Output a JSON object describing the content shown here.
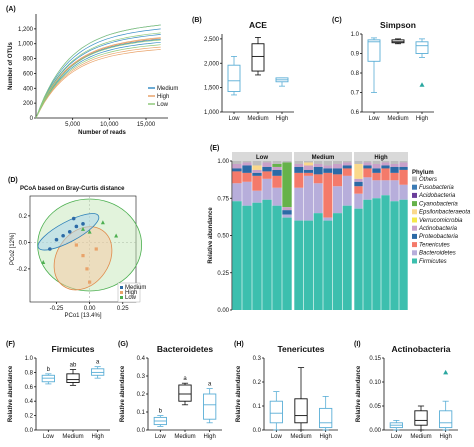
{
  "chart_data": [
    {
      "panel": "(A)",
      "type": "line",
      "title": "",
      "xlabel": "Number of reads",
      "ylabel": "Number of OTUs",
      "xlim": [
        0,
        18000
      ],
      "ylim": [
        0,
        1400
      ],
      "xticks": [
        "5,000",
        "10,000",
        "15,000"
      ],
      "yticks": [
        "0",
        "200",
        "400",
        "600",
        "800",
        "1,000",
        "1,200"
      ],
      "legend": {
        "position": "right",
        "entries": [
          "Medium",
          "High",
          "Low"
        ]
      },
      "colors": {
        "Medium": "#3a8fc6",
        "High": "#e9a36a",
        "Low": "#8fc97a"
      },
      "series": [
        {
          "name": "Medium",
          "plateau": [
            1180,
            1130,
            1000,
            960,
            1060
          ]
        },
        {
          "name": "High",
          "plateau": [
            1020,
            900,
            870,
            1010
          ]
        },
        {
          "name": "Low",
          "plateau": [
            1180,
            990,
            1080,
            930
          ]
        }
      ]
    },
    {
      "panel": "(B)",
      "type": "box",
      "title": "ACE",
      "categories": [
        "Low",
        "Medium",
        "High"
      ],
      "ylim": [
        1000,
        2600
      ],
      "yticks": [
        "1,000",
        "1,500",
        "2,000",
        "2,500"
      ],
      "boxes": [
        {
          "min": 1350,
          "q1": 1420,
          "median": 1640,
          "q3": 1960,
          "max": 2140
        },
        {
          "min": 1760,
          "q1": 1840,
          "median": 2140,
          "q3": 2400,
          "max": 2530
        },
        {
          "min": 1530,
          "q1": 1620,
          "median": 1660,
          "q3": 1700,
          "max": 1700
        }
      ]
    },
    {
      "panel": "(C)",
      "type": "box",
      "title": "Simpson",
      "categories": [
        "Low",
        "Medium",
        "High"
      ],
      "ylim": [
        0.6,
        1.0
      ],
      "yticks": [
        "0.6",
        "0.7",
        "0.8",
        "0.9",
        "1.0"
      ],
      "boxes": [
        {
          "min": 0.7,
          "q1": 0.86,
          "median": 0.96,
          "q3": 0.97,
          "max": 0.98
        },
        {
          "min": 0.95,
          "q1": 0.955,
          "median": 0.96,
          "q3": 0.97,
          "max": 0.975
        },
        {
          "min": 0.88,
          "q1": 0.9,
          "median": 0.94,
          "q3": 0.96,
          "max": 0.975
        }
      ],
      "outliers": [
        {
          "group": "High",
          "value": 0.74
        }
      ]
    },
    {
      "panel": "(D)",
      "type": "scatter",
      "title": "PCoA based on Bray-Curtis distance",
      "xlabel": "PCo1 [13.4%]",
      "ylabel": "PCo2 [12%]",
      "xlim": [
        -0.45,
        0.35
      ],
      "ylim": [
        -0.45,
        0.35
      ],
      "xticks": [
        "-0.25",
        "0.00",
        "0.25"
      ],
      "yticks": [
        "-0.2",
        "0.0",
        "0.2"
      ],
      "legend": {
        "position": "bottom-right",
        "entries": [
          "Medium",
          "High",
          "Low"
        ]
      },
      "series": [
        {
          "name": "Medium",
          "points": [
            [
              -0.25,
              0.02
            ],
            [
              -0.2,
              0.05
            ],
            [
              -0.15,
              0.08
            ],
            [
              -0.1,
              0.12
            ],
            [
              -0.05,
              0.14
            ],
            [
              -0.3,
              -0.05
            ],
            [
              -0.12,
              0.18
            ]
          ]
        },
        {
          "name": "High",
          "points": [
            [
              -0.05,
              -0.1
            ],
            [
              -0.02,
              -0.2
            ],
            [
              0.05,
              -0.05
            ],
            [
              -0.1,
              -0.02
            ],
            [
              0.0,
              -0.3
            ]
          ]
        },
        {
          "name": "Low",
          "points": [
            [
              -0.35,
              -0.15
            ],
            [
              0.1,
              0.15
            ],
            [
              -0.05,
              0.1
            ],
            [
              0.2,
              0.05
            ],
            [
              0.0,
              0.08
            ]
          ]
        }
      ]
    },
    {
      "panel": "(E)",
      "type": "bar",
      "title": "",
      "ylabel": "Relative abundance",
      "groups": [
        "Low",
        "Medium",
        "High"
      ],
      "yticks": [
        "0.00",
        "0.25",
        "0.50",
        "0.75",
        "1.00"
      ],
      "legend_title": "Phylum",
      "phyla": [
        "Others",
        "Fusobacteria",
        "Acidobacteria",
        "Cyanobacteria",
        "Epsilonbacteraeota",
        "Verrucomicrobia",
        "Actinobacteria",
        "Proteobacteria",
        "Tenericutes",
        "Bacteroidetes",
        "Firmicutes"
      ],
      "phylum_colors": [
        "#bdbdbd",
        "#3b7bb5",
        "#6a3d9a",
        "#66b24a",
        "#fad98c",
        "#f5e948",
        "#c9a0c9",
        "#2c6aa6",
        "#f47a6a",
        "#b7aedb",
        "#3cbfae"
      ],
      "samples": [
        {
          "group": "Low",
          "values": [
            0.02,
            0.0,
            0.0,
            0.0,
            0.0,
            0.0,
            0.03,
            0.02,
            0.08,
            0.12,
            0.73
          ]
        },
        {
          "group": "Low",
          "values": [
            0.01,
            0.0,
            0.0,
            0.0,
            0.0,
            0.0,
            0.02,
            0.05,
            0.06,
            0.16,
            0.7
          ]
        },
        {
          "group": "Low",
          "values": [
            0.03,
            0.0,
            0.0,
            0.0,
            0.03,
            0.0,
            0.02,
            0.02,
            0.1,
            0.08,
            0.72
          ]
        },
        {
          "group": "Low",
          "values": [
            0.01,
            0.0,
            0.0,
            0.0,
            0.0,
            0.0,
            0.03,
            0.03,
            0.05,
            0.14,
            0.74
          ]
        },
        {
          "group": "Low",
          "values": [
            0.02,
            0.0,
            0.0,
            0.02,
            0.0,
            0.0,
            0.02,
            0.04,
            0.08,
            0.12,
            0.7
          ]
        },
        {
          "group": "Low",
          "values": [
            0.01,
            0.0,
            0.0,
            0.3,
            0.0,
            0.0,
            0.02,
            0.03,
            0.0,
            0.02,
            0.62
          ]
        },
        {
          "group": "Medium",
          "values": [
            0.02,
            0.0,
            0.0,
            0.0,
            0.0,
            0.0,
            0.02,
            0.04,
            0.1,
            0.22,
            0.6
          ]
        },
        {
          "group": "Medium",
          "values": [
            0.01,
            0.0,
            0.0,
            0.0,
            0.02,
            0.0,
            0.03,
            0.02,
            0.02,
            0.3,
            0.6
          ]
        },
        {
          "group": "Medium",
          "values": [
            0.02,
            0.0,
            0.0,
            0.0,
            0.0,
            0.0,
            0.02,
            0.05,
            0.06,
            0.2,
            0.65
          ]
        },
        {
          "group": "Medium",
          "values": [
            0.03,
            0.0,
            0.0,
            0.0,
            0.0,
            0.0,
            0.02,
            0.03,
            0.3,
            0.02,
            0.6
          ]
        },
        {
          "group": "Medium",
          "values": [
            0.02,
            0.0,
            0.0,
            0.0,
            0.0,
            0.0,
            0.03,
            0.04,
            0.08,
            0.18,
            0.65
          ]
        },
        {
          "group": "Medium",
          "values": [
            0.01,
            0.0,
            0.0,
            0.0,
            0.0,
            0.0,
            0.02,
            0.02,
            0.05,
            0.2,
            0.7
          ]
        },
        {
          "group": "High",
          "values": [
            0.02,
            0.0,
            0.0,
            0.0,
            0.1,
            0.0,
            0.02,
            0.03,
            0.05,
            0.1,
            0.68
          ]
        },
        {
          "group": "High",
          "values": [
            0.01,
            0.0,
            0.0,
            0.0,
            0.0,
            0.0,
            0.02,
            0.02,
            0.06,
            0.15,
            0.74
          ]
        },
        {
          "group": "High",
          "values": [
            0.02,
            0.0,
            0.0,
            0.0,
            0.0,
            0.0,
            0.03,
            0.03,
            0.05,
            0.12,
            0.75
          ]
        },
        {
          "group": "High",
          "values": [
            0.01,
            0.0,
            0.0,
            0.0,
            0.0,
            0.0,
            0.02,
            0.02,
            0.08,
            0.1,
            0.77
          ]
        },
        {
          "group": "High",
          "values": [
            0.02,
            0.0,
            0.0,
            0.0,
            0.0,
            0.0,
            0.02,
            0.04,
            0.05,
            0.14,
            0.73
          ]
        },
        {
          "group": "High",
          "values": [
            0.01,
            0.0,
            0.0,
            0.0,
            0.0,
            0.0,
            0.03,
            0.02,
            0.1,
            0.1,
            0.74
          ]
        }
      ]
    },
    {
      "panel": "(F)",
      "type": "box",
      "title": "Firmicutes",
      "ylabel": "Relative abundance",
      "categories": [
        "Low",
        "Medium",
        "High"
      ],
      "ylim": [
        0.0,
        1.0
      ],
      "yticks": [
        "0.0",
        "0.2",
        "0.4",
        "0.6",
        "0.8",
        "1.0"
      ],
      "significance": [
        "b",
        "ab",
        "a"
      ],
      "boxes": [
        {
          "min": 0.64,
          "q1": 0.67,
          "median": 0.72,
          "q3": 0.76,
          "max": 0.78
        },
        {
          "min": 0.62,
          "q1": 0.66,
          "median": 0.7,
          "q3": 0.78,
          "max": 0.84
        },
        {
          "min": 0.72,
          "q1": 0.76,
          "median": 0.8,
          "q3": 0.85,
          "max": 0.88
        }
      ]
    },
    {
      "panel": "(G)",
      "type": "box",
      "title": "Bacteroidetes",
      "ylabel": "Relative abundance",
      "categories": [
        "Low",
        "Medium",
        "High"
      ],
      "ylim": [
        0.0,
        0.4
      ],
      "yticks": [
        "0.0",
        "0.1",
        "0.2",
        "0.3",
        "0.4"
      ],
      "significance": [
        "b",
        "a",
        "a"
      ],
      "boxes": [
        {
          "min": 0.02,
          "q1": 0.03,
          "median": 0.05,
          "q3": 0.07,
          "max": 0.08
        },
        {
          "min": 0.14,
          "q1": 0.16,
          "median": 0.2,
          "q3": 0.25,
          "max": 0.26
        },
        {
          "min": 0.04,
          "q1": 0.06,
          "median": 0.14,
          "q3": 0.2,
          "max": 0.23
        }
      ]
    },
    {
      "panel": "(H)",
      "type": "box",
      "title": "Tenericutes",
      "ylabel": "Relative abundance",
      "categories": [
        "Low",
        "Medium",
        "High"
      ],
      "ylim": [
        0.0,
        0.3
      ],
      "yticks": [
        "0.0",
        "0.1",
        "0.2",
        "0.3"
      ],
      "boxes": [
        {
          "min": 0.0,
          "q1": 0.03,
          "median": 0.07,
          "q3": 0.12,
          "max": 0.16
        },
        {
          "min": 0.0,
          "q1": 0.03,
          "median": 0.06,
          "q3": 0.13,
          "max": 0.26
        },
        {
          "min": 0.0,
          "q1": 0.01,
          "median": 0.03,
          "q3": 0.09,
          "max": 0.14
        }
      ]
    },
    {
      "panel": "(I)",
      "type": "box",
      "title": "Actinobacteria",
      "ylabel": "Relative abundance",
      "categories": [
        "Low",
        "Medium",
        "High"
      ],
      "ylim": [
        0.0,
        0.15
      ],
      "yticks": [
        "0.00",
        "0.05",
        "0.10",
        "0.15"
      ],
      "boxes": [
        {
          "min": 0.0,
          "q1": 0.005,
          "median": 0.01,
          "q3": 0.015,
          "max": 0.02
        },
        {
          "min": 0.0,
          "q1": 0.01,
          "median": 0.02,
          "q3": 0.04,
          "max": 0.05
        },
        {
          "min": 0.0,
          "q1": 0.005,
          "median": 0.015,
          "q3": 0.04,
          "max": 0.06
        }
      ],
      "outliers": [
        {
          "group": "High",
          "value": 0.12
        }
      ]
    }
  ]
}
